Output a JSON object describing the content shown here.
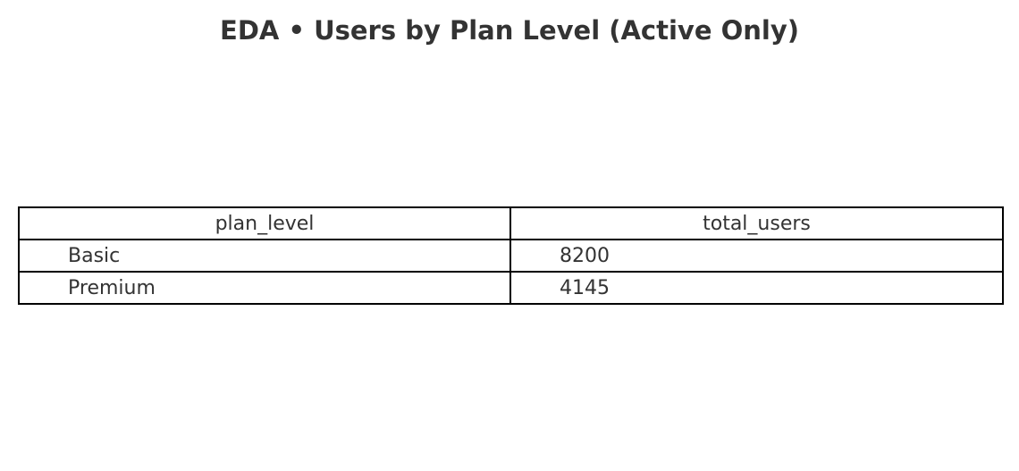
{
  "chart_data": {
    "type": "table",
    "title": "EDA • Users by Plan Level (Active Only)",
    "columns": [
      "plan_level",
      "total_users"
    ],
    "rows": [
      [
        "Basic",
        "8200"
      ],
      [
        "Premium",
        "4145"
      ]
    ]
  }
}
